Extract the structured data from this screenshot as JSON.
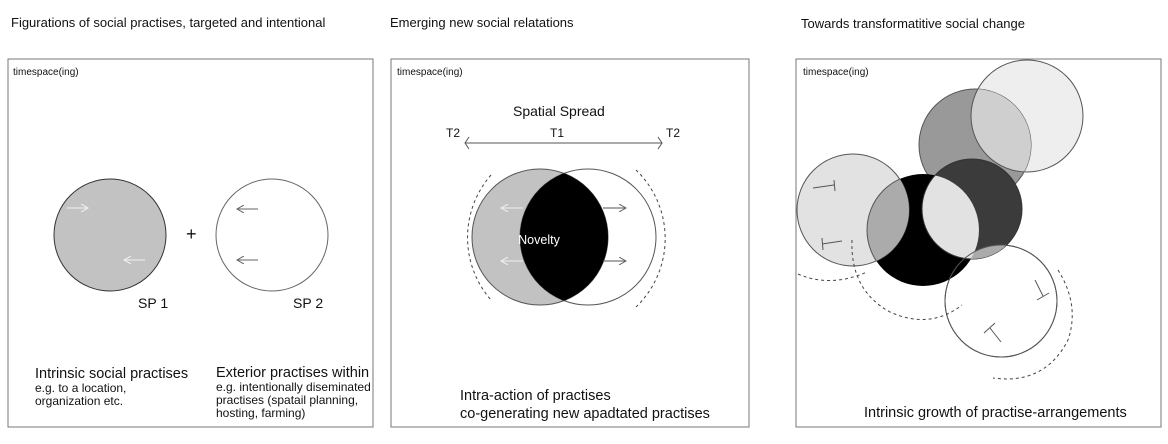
{
  "panels": [
    {
      "title": "Figurations of social practises, targeted and intentional",
      "frame_label": "timespace(ing)",
      "plus": "+",
      "sp1_label": "SP  1",
      "sp2_label": "SP  2",
      "left_heading": "Intrinsic social practises",
      "left_lines": [
        "e.g. to a location,",
        "organization etc."
      ],
      "right_heading": "Exterior practises within",
      "right_lines": [
        "e.g. intentionally diseminated",
        "practises (spatail planning,",
        "hosting, farming)"
      ]
    },
    {
      "title": "Emerging new social relatations",
      "frame_label": "timespace(ing)",
      "spread_label": "Spatial Spread",
      "t2_left": "T2",
      "t1": "T1",
      "t2_right": "T2",
      "center_label": "Novelty",
      "caption_lines": [
        "Intra-action of practises",
        "co-generating new apadtated practises"
      ]
    },
    {
      "title": "Towards transformatitive social change",
      "frame_label": "timespace(ing)",
      "caption": "Intrinsic growth of practise-arrangements"
    }
  ],
  "colors": {
    "outline": "#555555",
    "gray": "#c0c0c0",
    "mid_gray": "#999999",
    "dark": "#3b3b3b",
    "black": "#000000",
    "light": "#e2e2e2",
    "lighter": "#eeeeee"
  }
}
